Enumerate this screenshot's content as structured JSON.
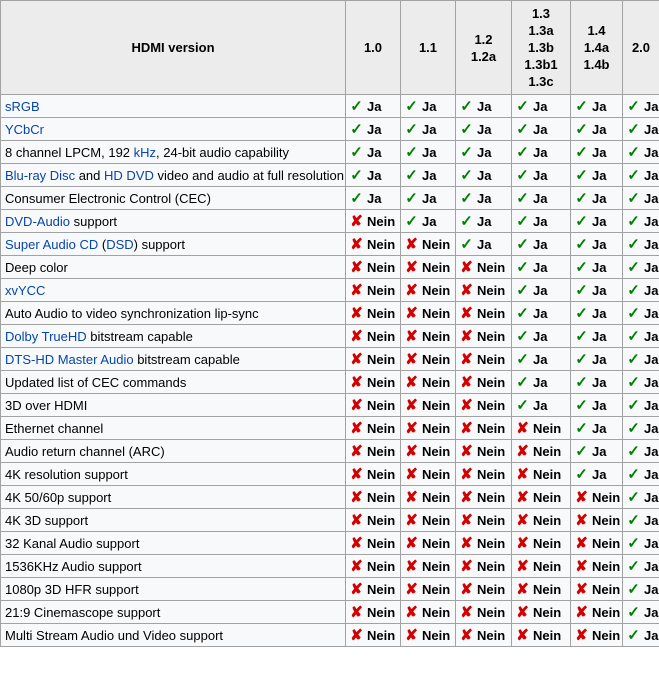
{
  "colors": {
    "link_blue": "#0645ad",
    "check_green": "#008000",
    "cross_red": "#d40000",
    "header_bg": "#ececec",
    "row_bg": "#f8f9fa",
    "border_gray": "#a2a2a2"
  },
  "icons": {
    "check": "✓",
    "cross": "✘"
  },
  "table": {
    "feature_header": "HDMI version",
    "version_columns": [
      [
        "1.0"
      ],
      [
        "1.1"
      ],
      [
        "1.2",
        "1.2a"
      ],
      [
        "1.3",
        "1.3a",
        "1.3b",
        "1.3b1",
        "1.3c"
      ],
      [
        "1.4",
        "1.4a",
        "1.4b"
      ],
      [
        "2.0"
      ]
    ],
    "yes_label": "Ja",
    "no_label": "Nein",
    "rows": [
      {
        "feature": [
          {
            "text": "sRGB",
            "link": true
          }
        ],
        "values": [
          "yes",
          "yes",
          "yes",
          "yes",
          "yes",
          "yes"
        ]
      },
      {
        "feature": [
          {
            "text": "YCbCr",
            "link": true
          }
        ],
        "values": [
          "yes",
          "yes",
          "yes",
          "yes",
          "yes",
          "yes"
        ]
      },
      {
        "feature": [
          {
            "text": "8 channel LPCM, 192 ",
            "link": false
          },
          {
            "text": "kHz",
            "link": true
          },
          {
            "text": ", 24-bit audio capability",
            "link": false
          }
        ],
        "values": [
          "yes",
          "yes",
          "yes",
          "yes",
          "yes",
          "yes"
        ]
      },
      {
        "feature": [
          {
            "text": "Blu-ray Disc",
            "link": true
          },
          {
            "text": " and ",
            "link": false
          },
          {
            "text": "HD DVD",
            "link": true
          },
          {
            "text": " video and audio at full resolution",
            "link": false
          }
        ],
        "values": [
          "yes",
          "yes",
          "yes",
          "yes",
          "yes",
          "yes"
        ]
      },
      {
        "feature": [
          {
            "text": "Consumer Electronic Control (CEC)",
            "link": false
          }
        ],
        "values": [
          "yes",
          "yes",
          "yes",
          "yes",
          "yes",
          "yes"
        ]
      },
      {
        "feature": [
          {
            "text": "DVD-Audio",
            "link": true
          },
          {
            "text": " support",
            "link": false
          }
        ],
        "values": [
          "no",
          "yes",
          "yes",
          "yes",
          "yes",
          "yes"
        ]
      },
      {
        "feature": [
          {
            "text": "Super Audio CD",
            "link": true
          },
          {
            "text": " (",
            "link": false
          },
          {
            "text": "DSD",
            "link": true
          },
          {
            "text": ") support",
            "link": false
          }
        ],
        "values": [
          "no",
          "no",
          "yes",
          "yes",
          "yes",
          "yes"
        ]
      },
      {
        "feature": [
          {
            "text": "Deep color",
            "link": false
          }
        ],
        "values": [
          "no",
          "no",
          "no",
          "yes",
          "yes",
          "yes"
        ]
      },
      {
        "feature": [
          {
            "text": "xvYCC",
            "link": true
          }
        ],
        "values": [
          "no",
          "no",
          "no",
          "yes",
          "yes",
          "yes"
        ]
      },
      {
        "feature": [
          {
            "text": "Auto Audio to video synchronization lip-sync",
            "link": false
          }
        ],
        "values": [
          "no",
          "no",
          "no",
          "yes",
          "yes",
          "yes"
        ]
      },
      {
        "feature": [
          {
            "text": "Dolby TrueHD",
            "link": true
          },
          {
            "text": " bitstream capable",
            "link": false
          }
        ],
        "values": [
          "no",
          "no",
          "no",
          "yes",
          "yes",
          "yes"
        ]
      },
      {
        "feature": [
          {
            "text": "DTS-HD Master Audio",
            "link": true
          },
          {
            "text": " bitstream capable",
            "link": false
          }
        ],
        "values": [
          "no",
          "no",
          "no",
          "yes",
          "yes",
          "yes"
        ]
      },
      {
        "feature": [
          {
            "text": "Updated list of CEC commands",
            "link": false
          }
        ],
        "values": [
          "no",
          "no",
          "no",
          "yes",
          "yes",
          "yes"
        ]
      },
      {
        "feature": [
          {
            "text": "3D over HDMI",
            "link": false
          }
        ],
        "values": [
          "no",
          "no",
          "no",
          "yes",
          "yes",
          "yes"
        ]
      },
      {
        "feature": [
          {
            "text": "Ethernet channel",
            "link": false
          }
        ],
        "values": [
          "no",
          "no",
          "no",
          "no",
          "yes",
          "yes"
        ]
      },
      {
        "feature": [
          {
            "text": "Audio return channel (ARC)",
            "link": false
          }
        ],
        "values": [
          "no",
          "no",
          "no",
          "no",
          "yes",
          "yes"
        ]
      },
      {
        "feature": [
          {
            "text": "4K resolution support",
            "link": false
          }
        ],
        "values": [
          "no",
          "no",
          "no",
          "no",
          "yes",
          "yes"
        ]
      },
      {
        "feature": [
          {
            "text": "4K 50/60p support",
            "link": false
          }
        ],
        "values": [
          "no",
          "no",
          "no",
          "no",
          "no",
          "yes"
        ]
      },
      {
        "feature": [
          {
            "text": "4K 3D support",
            "link": false
          }
        ],
        "values": [
          "no",
          "no",
          "no",
          "no",
          "no",
          "yes"
        ]
      },
      {
        "feature": [
          {
            "text": "32 Kanal Audio support",
            "link": false
          }
        ],
        "values": [
          "no",
          "no",
          "no",
          "no",
          "no",
          "yes"
        ]
      },
      {
        "feature": [
          {
            "text": "1536KHz Audio support",
            "link": false
          }
        ],
        "values": [
          "no",
          "no",
          "no",
          "no",
          "no",
          "yes"
        ]
      },
      {
        "feature": [
          {
            "text": "1080p 3D HFR support",
            "link": false
          }
        ],
        "values": [
          "no",
          "no",
          "no",
          "no",
          "no",
          "yes"
        ]
      },
      {
        "feature": [
          {
            "text": "21:9 Cinemascope support",
            "link": false
          }
        ],
        "values": [
          "no",
          "no",
          "no",
          "no",
          "no",
          "yes"
        ]
      },
      {
        "feature": [
          {
            "text": "Multi Stream Audio und Video support",
            "link": false
          }
        ],
        "values": [
          "no",
          "no",
          "no",
          "no",
          "no",
          "yes"
        ]
      }
    ]
  }
}
